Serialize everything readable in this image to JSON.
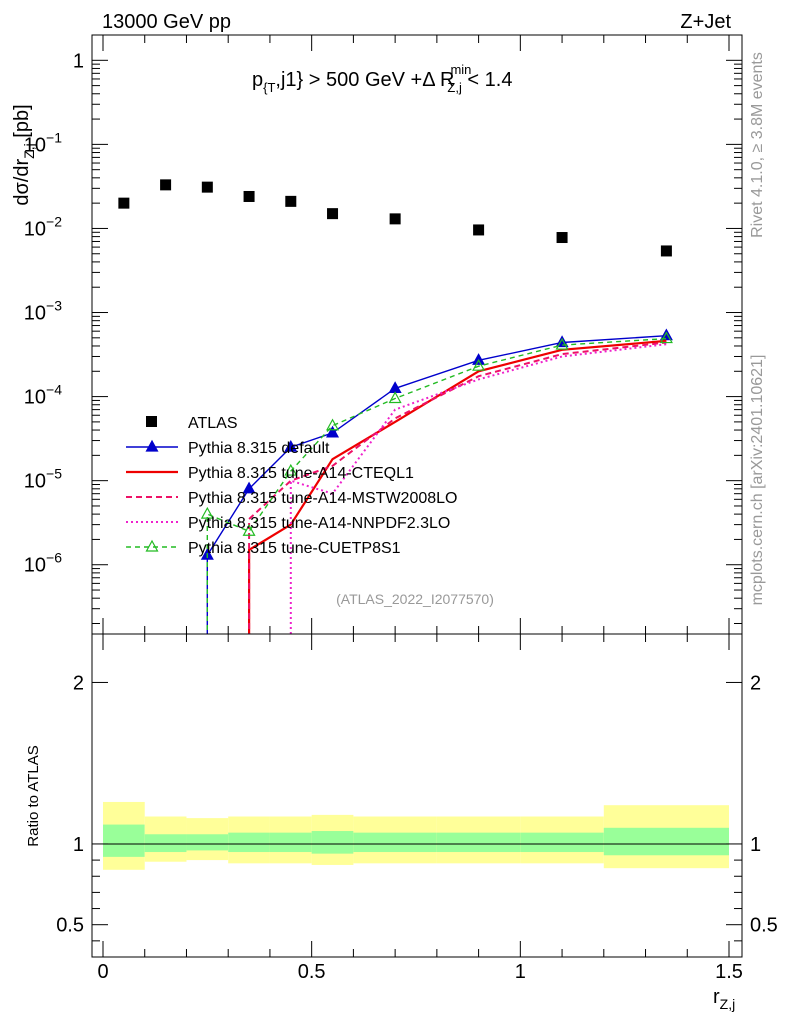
{
  "header": {
    "left": "13000 GeV pp",
    "right": "Z+Jet"
  },
  "cut_label": {
    "p": "p",
    "p_sub": "{T",
    "mid": ",j1} > 500 GeV +Δ R",
    "r_sup": "min",
    "r_sub": "Z,j",
    "end": " < 1.4"
  },
  "ylabel": {
    "main": "dσ/dr",
    "sub": "Z,j",
    "unit": " [pb]"
  },
  "ratio_ylabel": "Ratio to ATLAS",
  "xlabel": {
    "main": "r",
    "sub": "Z,j"
  },
  "side_labels": {
    "rivet": "Rivet 4.1.0, ≥ 3.8M events",
    "mcplots": "mcplots.cern.ch [arXiv:2401.10621]"
  },
  "analysis_tag": "(ATLAS_2022_I2077570)",
  "colors": {
    "atlas": "#000000",
    "default": "#0000cc",
    "cteql1": "#ee0000",
    "mstw": "#ee1166",
    "nnpdf": "#ee22cc",
    "cuetp8s1": "#22bb22",
    "band_inner": "#99ff99",
    "band_outer": "#ffff99"
  },
  "chart_data": {
    "type": "scatter",
    "main": {
      "yscale": "log",
      "xlim": [
        0,
        1.5
      ],
      "ylim": [
        1.5e-07,
        2.0
      ],
      "y_ticks": [
        {
          "value": 1,
          "base": "1",
          "exp": ""
        },
        {
          "value": 0.1,
          "base": "10",
          "exp": "−1"
        },
        {
          "value": 0.01,
          "base": "10",
          "exp": "−2"
        },
        {
          "value": 0.001,
          "base": "10",
          "exp": "−3"
        },
        {
          "value": 0.0001,
          "base": "10",
          "exp": "−4"
        },
        {
          "value": 1e-05,
          "base": "10",
          "exp": "−5"
        },
        {
          "value": 1e-06,
          "base": "10",
          "exp": "−6"
        }
      ],
      "series": [
        {
          "key": "atlas",
          "name": "ATLAS",
          "style": "square",
          "x": [
            0.05,
            0.15,
            0.25,
            0.35,
            0.45,
            0.55,
            0.7,
            0.9,
            1.1,
            1.35
          ],
          "y": [
            0.02,
            0.033,
            0.031,
            0.024,
            0.021,
            0.015,
            0.013,
            0.0096,
            0.0078,
            0.0054
          ]
        },
        {
          "key": "default",
          "name": "Pythia 8.315 default",
          "style": "solid-tri",
          "x": [
            0.25,
            0.35,
            0.45,
            0.55,
            0.7,
            0.9,
            1.1,
            1.35
          ],
          "y": [
            1.3e-06,
            8e-06,
            2.5e-05,
            3.7e-05,
            0.000125,
            0.00027,
            0.00044,
            0.00053
          ]
        },
        {
          "key": "cteql1",
          "name": "Pythia 8.315 tune-A14-CTEQL1",
          "style": "solid-thick",
          "x": [
            0.35,
            0.45,
            0.55,
            0.7,
            0.9,
            1.1,
            1.35
          ],
          "y": [
            1.5e-06,
            3e-06,
            1.8e-05,
            5e-05,
            0.0002,
            0.00036,
            0.00046
          ]
        },
        {
          "key": "mstw",
          "name": "Pythia 8.315 tune-A14-MSTW2008LO",
          "style": "dashed",
          "x": [
            0.35,
            0.45,
            0.55,
            0.7,
            0.9,
            1.1,
            1.35
          ],
          "y": [
            3.5e-06,
            1e-05,
            1.5e-05,
            5.5e-05,
            0.000175,
            0.00032,
            0.00044
          ]
        },
        {
          "key": "nnpdf",
          "name": "Pythia 8.315 tune-A14-NNPDF2.3LO",
          "style": "dotted",
          "x": [
            0.45,
            0.55,
            0.7,
            0.9,
            1.1,
            1.35
          ],
          "y": [
            1e-05,
            7e-06,
            7e-05,
            0.00016,
            0.0003,
            0.00042
          ]
        },
        {
          "key": "cuetp8s1",
          "name": "Pythia 8.315 tune-CUETP8S1",
          "style": "dashed-tri",
          "x": [
            0.25,
            0.35,
            0.45,
            0.55,
            0.7,
            0.9,
            1.1,
            1.35
          ],
          "y": [
            4e-06,
            2.5e-06,
            1.3e-05,
            4.5e-05,
            9.5e-05,
            0.00023,
            0.00041,
            0.00049
          ]
        }
      ]
    },
    "ratio": {
      "xlim": [
        0,
        1.5
      ],
      "ylim": [
        0.3,
        2.3
      ],
      "y_ticks": [
        0.5,
        1,
        2
      ],
      "y_tick_labels": [
        "0.5",
        "1",
        "2"
      ],
      "x_ticks": [
        0,
        0.5,
        1,
        1.5
      ],
      "x_tick_labels": [
        "0",
        "0.5",
        "1",
        "1.5"
      ],
      "bands": [
        {
          "x0": 0.0,
          "x1": 0.1,
          "inner": [
            0.92,
            1.12
          ],
          "outer": [
            0.84,
            1.26
          ]
        },
        {
          "x0": 0.1,
          "x1": 0.2,
          "inner": [
            0.95,
            1.06
          ],
          "outer": [
            0.89,
            1.17
          ]
        },
        {
          "x0": 0.2,
          "x1": 0.3,
          "inner": [
            0.96,
            1.06
          ],
          "outer": [
            0.9,
            1.16
          ]
        },
        {
          "x0": 0.3,
          "x1": 0.4,
          "inner": [
            0.95,
            1.07
          ],
          "outer": [
            0.88,
            1.17
          ]
        },
        {
          "x0": 0.4,
          "x1": 0.5,
          "inner": [
            0.95,
            1.07
          ],
          "outer": [
            0.88,
            1.17
          ]
        },
        {
          "x0": 0.5,
          "x1": 0.6,
          "inner": [
            0.94,
            1.08
          ],
          "outer": [
            0.87,
            1.18
          ]
        },
        {
          "x0": 0.6,
          "x1": 0.8,
          "inner": [
            0.95,
            1.07
          ],
          "outer": [
            0.88,
            1.17
          ]
        },
        {
          "x0": 0.8,
          "x1": 1.0,
          "inner": [
            0.95,
            1.07
          ],
          "outer": [
            0.88,
            1.17
          ]
        },
        {
          "x0": 1.0,
          "x1": 1.2,
          "inner": [
            0.95,
            1.07
          ],
          "outer": [
            0.88,
            1.17
          ]
        },
        {
          "x0": 1.2,
          "x1": 1.5,
          "inner": [
            0.93,
            1.1
          ],
          "outer": [
            0.85,
            1.24
          ]
        }
      ]
    }
  }
}
